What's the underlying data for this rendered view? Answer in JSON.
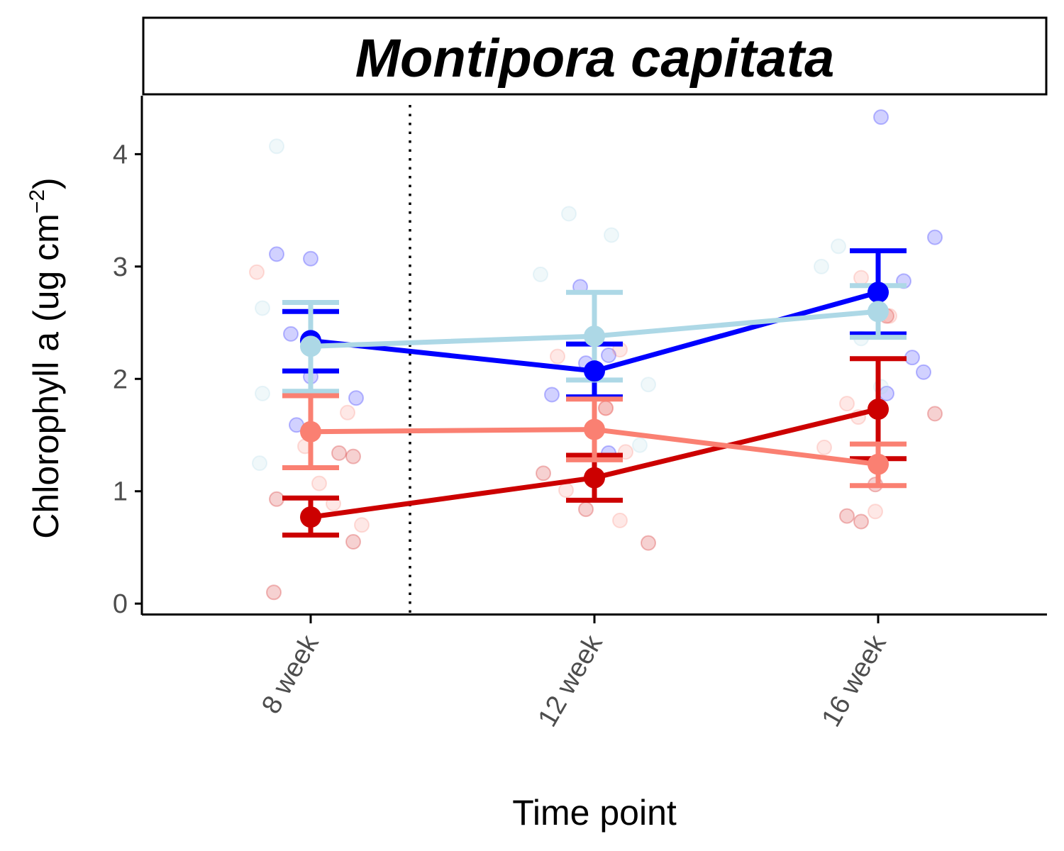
{
  "chart_data": {
    "type": "line",
    "title": "Montipora capitata",
    "xlabel": "Time point",
    "ylabel": {
      "main": "Chlorophyll a (ug cm",
      "superscript": "−2",
      "close": ")"
    },
    "categories": [
      "8 week",
      "12 week",
      "16 week"
    ],
    "ylim": [
      -0.1,
      4.52
    ],
    "yticks": [
      "0",
      "1",
      "2",
      "3",
      "4"
    ],
    "grid": false,
    "legend": "none",
    "annotations": [
      {
        "type": "vertical-dotted-line",
        "x": 1.35
      }
    ],
    "series": [
      {
        "name": "series-blue",
        "color": "#0000ff",
        "means": [
          2.34,
          2.07,
          2.77
        ],
        "error_low": [
          2.07,
          1.84,
          2.4
        ],
        "error_high": [
          2.6,
          2.31,
          3.14
        ],
        "points": [
          {
            "x": 0.88,
            "y": 3.11
          },
          {
            "x": 0.93,
            "y": 2.4
          },
          {
            "x": 1.0,
            "y": 2.02
          },
          {
            "x": 0.95,
            "y": 1.59
          },
          {
            "x": 1.0,
            "y": 3.07
          },
          {
            "x": 1.16,
            "y": 1.83
          },
          {
            "x": 1.85,
            "y": 1.86
          },
          {
            "x": 1.95,
            "y": 2.82
          },
          {
            "x": 1.97,
            "y": 2.14
          },
          {
            "x": 2.05,
            "y": 2.21
          },
          {
            "x": 2.05,
            "y": 1.34
          },
          {
            "x": 3.01,
            "y": 4.33
          },
          {
            "x": 3.09,
            "y": 2.87
          },
          {
            "x": 3.12,
            "y": 2.19
          },
          {
            "x": 3.16,
            "y": 2.06
          },
          {
            "x": 3.2,
            "y": 3.26
          },
          {
            "x": 3.03,
            "y": 1.87
          }
        ]
      },
      {
        "name": "series-light-blue",
        "color": "#add8e6",
        "means": [
          2.29,
          2.38,
          2.6
        ],
        "error_low": [
          1.89,
          1.99,
          2.37
        ],
        "error_high": [
          2.68,
          2.77,
          2.83
        ],
        "points": [
          {
            "x": 0.88,
            "y": 4.07
          },
          {
            "x": 0.83,
            "y": 2.63
          },
          {
            "x": 0.83,
            "y": 1.87
          },
          {
            "x": 0.82,
            "y": 1.25
          },
          {
            "x": 1.81,
            "y": 2.93
          },
          {
            "x": 1.91,
            "y": 3.47
          },
          {
            "x": 2.06,
            "y": 3.28
          },
          {
            "x": 2.19,
            "y": 1.95
          },
          {
            "x": 2.16,
            "y": 1.41
          },
          {
            "x": 2.8,
            "y": 3.0
          },
          {
            "x": 2.86,
            "y": 3.18
          },
          {
            "x": 2.94,
            "y": 2.36
          },
          {
            "x": 3.01,
            "y": 1.93
          }
        ]
      },
      {
        "name": "series-red",
        "color": "#cc0000",
        "means": [
          0.77,
          1.12,
          1.73
        ],
        "error_low": [
          0.61,
          0.92,
          1.29
        ],
        "error_high": [
          0.94,
          1.32,
          2.18
        ],
        "points": [
          {
            "x": 0.87,
            "y": 0.1
          },
          {
            "x": 0.88,
            "y": 0.93
          },
          {
            "x": 1.1,
            "y": 1.34
          },
          {
            "x": 1.15,
            "y": 1.31
          },
          {
            "x": 1.15,
            "y": 0.55
          },
          {
            "x": 1.82,
            "y": 1.16
          },
          {
            "x": 1.97,
            "y": 0.84
          },
          {
            "x": 2.04,
            "y": 1.74
          },
          {
            "x": 2.19,
            "y": 0.54
          },
          {
            "x": 2.89,
            "y": 0.78
          },
          {
            "x": 2.94,
            "y": 0.73
          },
          {
            "x": 2.99,
            "y": 1.06
          },
          {
            "x": 3.2,
            "y": 1.69
          },
          {
            "x": 3.03,
            "y": 2.56
          }
        ]
      },
      {
        "name": "series-salmon",
        "color": "#fa8072",
        "means": [
          1.53,
          1.55,
          1.24
        ],
        "error_low": [
          1.21,
          1.28,
          1.05
        ],
        "error_high": [
          1.85,
          1.82,
          1.42
        ],
        "points": [
          {
            "x": 0.81,
            "y": 2.95
          },
          {
            "x": 0.98,
            "y": 1.4
          },
          {
            "x": 1.03,
            "y": 1.07
          },
          {
            "x": 1.08,
            "y": 0.89
          },
          {
            "x": 1.13,
            "y": 1.7
          },
          {
            "x": 1.18,
            "y": 0.7
          },
          {
            "x": 1.87,
            "y": 2.2
          },
          {
            "x": 1.9,
            "y": 1.01
          },
          {
            "x": 2.09,
            "y": 2.26
          },
          {
            "x": 2.11,
            "y": 1.35
          },
          {
            "x": 2.09,
            "y": 0.74
          },
          {
            "x": 2.04,
            "y": 1.74
          },
          {
            "x": 2.81,
            "y": 1.39
          },
          {
            "x": 2.89,
            "y": 1.78
          },
          {
            "x": 2.93,
            "y": 1.66
          },
          {
            "x": 2.94,
            "y": 2.9
          },
          {
            "x": 2.99,
            "y": 0.82
          },
          {
            "x": 3.04,
            "y": 2.56
          }
        ]
      }
    ]
  }
}
